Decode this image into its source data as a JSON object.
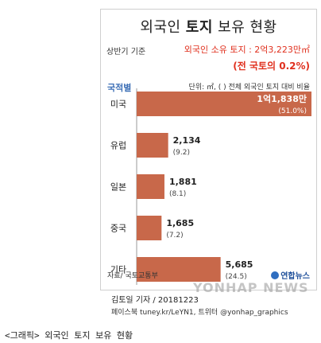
{
  "header": {
    "title_prefix": "외국인 ",
    "title_bold": "토지",
    "title_suffix": " 보유 현황",
    "basis": "상반기 기준",
    "total": "외국인 소유 토지 : 2억3,223만㎡",
    "share": "(전 국토의 0.2%)"
  },
  "legend_head": "국적별",
  "unit_note": "단위: ㎡, ( ) 전체 외국인 토지 대비 비율",
  "source": "자료/ 국토교통부",
  "logo": "연합뉴스",
  "watermark": "YONHAP NEWS",
  "byline": "김토일 기자 / 20181223",
  "social": "페이스북 tuney.kr/LeYN1, 트위터 @yonhap_graphics",
  "caption": "<그래픽> 외국인 토지 보유 현황",
  "colors": {
    "bar": "#c8684a",
    "axis": "#9a9a9a",
    "accent": "#e0301e",
    "legend": "#3d6fb6"
  },
  "chart_data": {
    "type": "bar",
    "orientation": "horizontal",
    "categories": [
      "미국",
      "유럽",
      "일본",
      "중국",
      "기타"
    ],
    "values": [
      11838,
      2134,
      1881,
      1685,
      5685
    ],
    "value_labels": [
      "1억1,838만",
      "2,134",
      "1,881",
      "1,685",
      "5,685"
    ],
    "percent_labels": [
      "(51.0%)",
      "(9.2)",
      "(8.1)",
      "(7.2)",
      "(24.5)"
    ],
    "percents": [
      51.0,
      9.2,
      8.1,
      7.2,
      24.5
    ],
    "unit": "㎡"
  }
}
